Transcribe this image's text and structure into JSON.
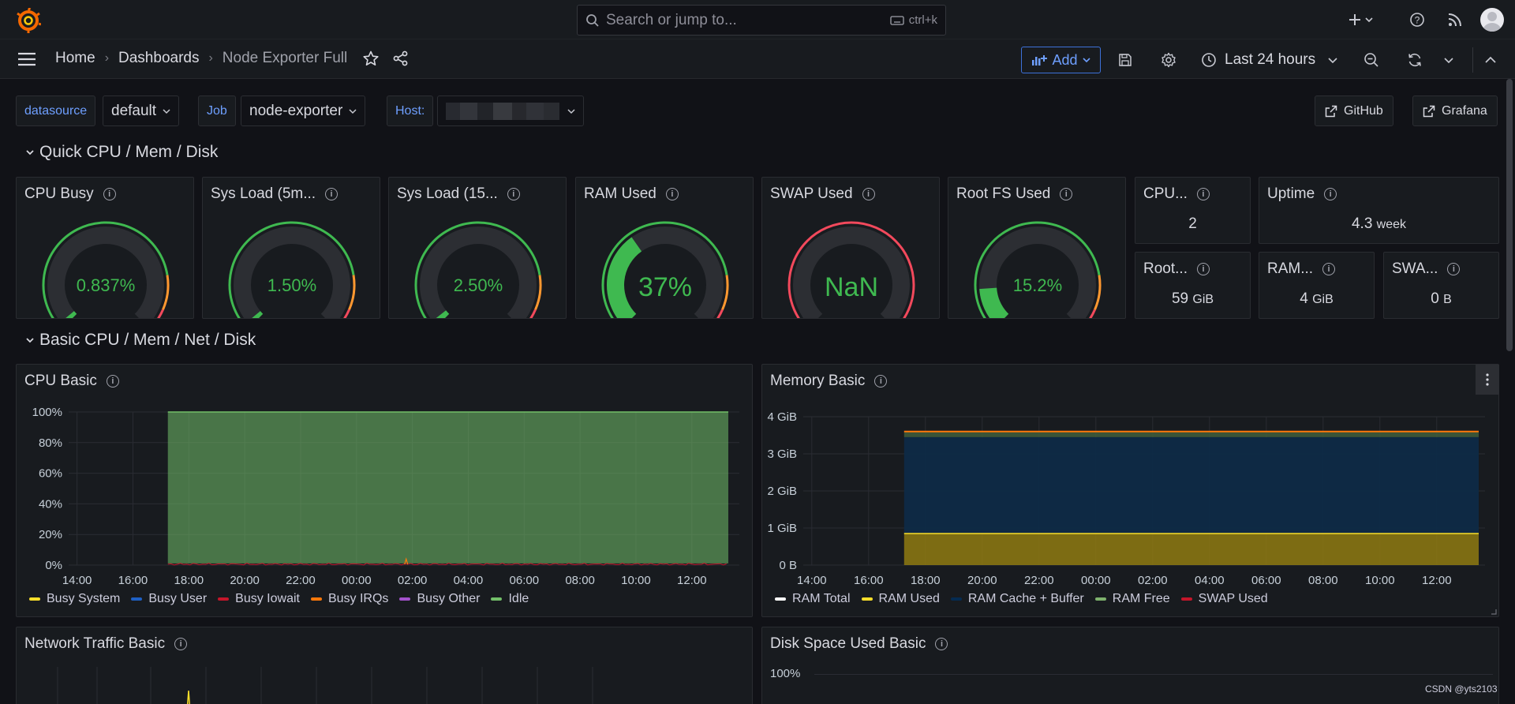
{
  "topbar": {
    "search_placeholder": "Search or jump to...",
    "search_shortcut": "ctrl+k"
  },
  "nav": {
    "breadcrumbs": [
      "Home",
      "Dashboards",
      "Node Exporter Full"
    ],
    "add_label": "Add",
    "time_range": "Last 24 hours"
  },
  "variables": {
    "datasource_label": "datasource",
    "datasource_value": "default",
    "job_label": "Job",
    "job_value": "node-exporter",
    "host_label": "Host:",
    "github_label": "GitHub",
    "grafana_label": "Grafana"
  },
  "rows": {
    "quick": "Quick CPU / Mem / Disk",
    "basic": "Basic CPU / Mem / Net / Disk"
  },
  "gauges": [
    {
      "title": "CPU Busy",
      "value": "0.837%",
      "fraction": 0.00837,
      "threshold": "green"
    },
    {
      "title": "Sys Load (5m...",
      "value": "1.50%",
      "fraction": 0.015,
      "threshold": "green"
    },
    {
      "title": "Sys Load (15...",
      "value": "2.50%",
      "fraction": 0.025,
      "threshold": "green"
    },
    {
      "title": "RAM Used",
      "value": "37%",
      "fraction": 0.37,
      "threshold": "green"
    },
    {
      "title": "SWAP Used",
      "value": "NaN",
      "fraction": 0,
      "threshold": "red"
    },
    {
      "title": "Root FS Used",
      "value": "15.2%",
      "fraction": 0.152,
      "threshold": "green"
    }
  ],
  "stats": {
    "cpu_cores": {
      "title": "CPU...",
      "value": "2",
      "unit": ""
    },
    "uptime": {
      "title": "Uptime",
      "value": "4.3",
      "unit": "week"
    },
    "root_fs": {
      "title": "Root...",
      "value": "59",
      "unit": "GiB"
    },
    "ram_total": {
      "title": "RAM...",
      "value": "4",
      "unit": "GiB"
    },
    "swap_total": {
      "title": "SWA...",
      "value": "0",
      "unit": "B"
    }
  },
  "panels": {
    "cpu_basic": "CPU Basic",
    "memory_basic": "Memory Basic",
    "network_basic": "Network Traffic Basic",
    "disk_basic": "Disk Space Used Basic"
  },
  "colors": {
    "accent": "#6e9fff",
    "green": "#37872d",
    "ok": "#3fb950",
    "warn": "#ff9830",
    "crit": "#f2495c"
  },
  "chart_data": [
    {
      "type": "area",
      "title": "CPU Basic",
      "x": [
        "14:00",
        "16:00",
        "18:00",
        "20:00",
        "22:00",
        "00:00",
        "02:00",
        "04:00",
        "06:00",
        "08:00",
        "10:00",
        "12:00"
      ],
      "y_ticks": [
        "0%",
        "20%",
        "40%",
        "60%",
        "80%",
        "100%"
      ],
      "ylim": [
        0,
        100
      ],
      "data_start": "17:15",
      "series": [
        {
          "name": "Busy System",
          "color": "#fade2a",
          "value": 0.5
        },
        {
          "name": "Busy User",
          "color": "#1f60c4",
          "value": 0.5
        },
        {
          "name": "Busy Iowait",
          "color": "#c4162a",
          "value": 0.1
        },
        {
          "name": "Busy IRQs",
          "color": "#ff780a",
          "value": 0.0
        },
        {
          "name": "Busy Other",
          "color": "#a352cc",
          "value": 0.0
        },
        {
          "name": "Idle",
          "color": "#73bf69",
          "value": 98.9
        }
      ],
      "legend": "bottom"
    },
    {
      "type": "area",
      "title": "Memory Basic",
      "x": [
        "14:00",
        "16:00",
        "18:00",
        "20:00",
        "22:00",
        "00:00",
        "02:00",
        "04:00",
        "06:00",
        "08:00",
        "10:00",
        "12:00"
      ],
      "y_ticks": [
        "0 B",
        "1 GiB",
        "2 GiB",
        "3 GiB",
        "4 GiB"
      ],
      "ylim": [
        0,
        4
      ],
      "data_start": "17:15",
      "series": [
        {
          "name": "RAM Total",
          "color": "#ffffff",
          "value": 3.6
        },
        {
          "name": "RAM Used",
          "color": "#fade2a",
          "value": 0.85
        },
        {
          "name": "RAM Cache + Buffer",
          "color": "#052b51",
          "value": 2.6
        },
        {
          "name": "RAM Free",
          "color": "#7eb26d",
          "value": 0.15
        },
        {
          "name": "SWAP Used",
          "color": "#c4162a",
          "value": 0
        }
      ],
      "legend": "bottom"
    }
  ],
  "disk_axis_label": "100%",
  "watermark": "CSDN @yts2103"
}
